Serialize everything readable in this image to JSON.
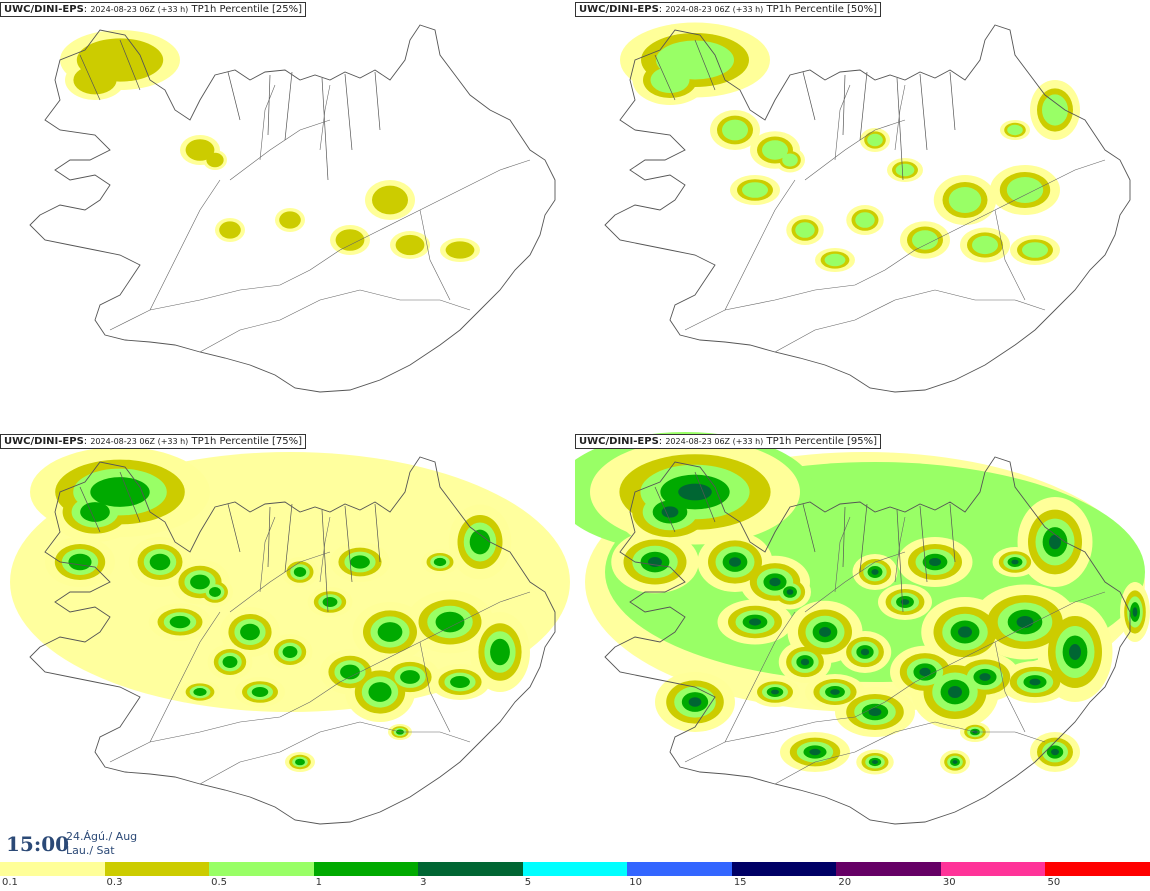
{
  "panels": [
    {
      "model": "UWC/DINI-EPS",
      "run": "2024-08-23 06Z (+33 h)",
      "product": "TP1h Percentile [25%]",
      "level": 1
    },
    {
      "model": "UWC/DINI-EPS",
      "run": "2024-08-23 06Z (+33 h)",
      "product": "TP1h Percentile [50%]",
      "level": 2
    },
    {
      "model": "UWC/DINI-EPS",
      "run": "2024-08-23 06Z (+33 h)",
      "product": "TP1h Percentile [75%]",
      "level": 3
    },
    {
      "model": "UWC/DINI-EPS",
      "run": "2024-08-23 06Z (+33 h)",
      "product": "TP1h Percentile [95%]",
      "level": 4
    }
  ],
  "valid_time": {
    "clock": "15:00",
    "date_line1": "24.Ágú./ Aug",
    "date_line2": "Lau./ Sat"
  },
  "legend": {
    "colors": [
      "#ffff99",
      "#cccc00",
      "#99ff66",
      "#00aa00",
      "#006633",
      "#00ffff",
      "#3366ff",
      "#000066",
      "#660066",
      "#ff3399",
      "#ff0000"
    ],
    "ticks": [
      "0.1",
      "0.3",
      "0.5",
      "1",
      "3",
      "5",
      "10",
      "15",
      "20",
      "30",
      "50"
    ]
  }
}
